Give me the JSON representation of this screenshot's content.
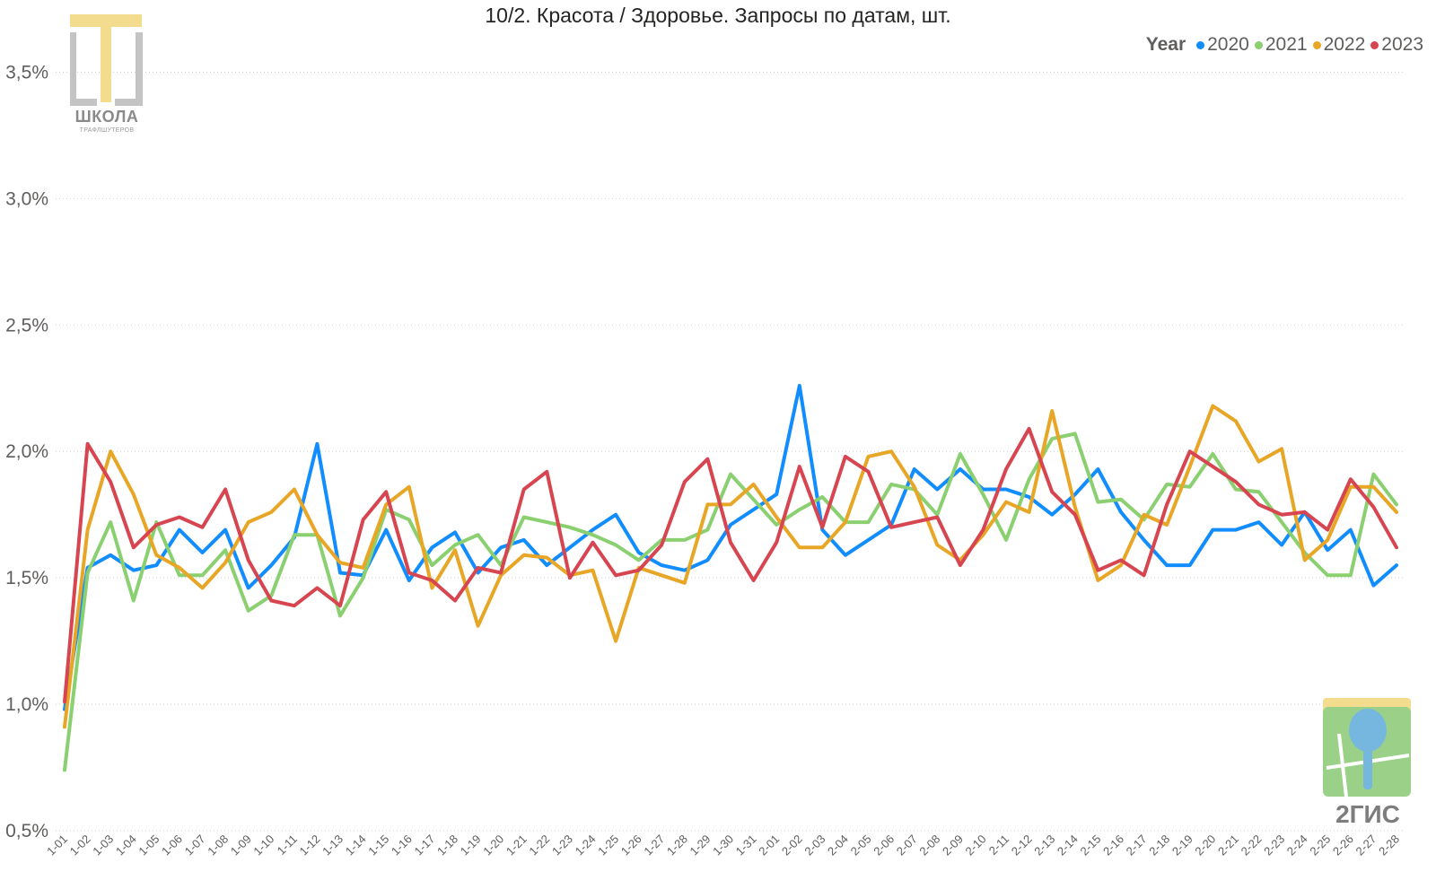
{
  "chart_data": {
    "type": "line",
    "title": "10/2. Красота / Здоровье. Запросы по датам, шт.",
    "legend_title": "Year",
    "legend_position": "top-right",
    "grid": true,
    "ylim": [
      0.5,
      3.75
    ],
    "yticks": [
      0.5,
      1.0,
      1.5,
      2.0,
      2.5,
      3.0,
      3.5
    ],
    "ytick_labels": [
      "0,5%",
      "1,0%",
      "1,5%",
      "2,0%",
      "2,5%",
      "3,0%",
      "3,5%"
    ],
    "x": [
      "1-01",
      "1-02",
      "1-03",
      "1-04",
      "1-05",
      "1-06",
      "1-07",
      "1-08",
      "1-09",
      "1-10",
      "1-11",
      "1-12",
      "1-13",
      "1-14",
      "1-15",
      "1-16",
      "1-17",
      "1-18",
      "1-19",
      "1-20",
      "1-21",
      "1-22",
      "1-23",
      "1-24",
      "1-25",
      "1-26",
      "1-27",
      "1-28",
      "1-29",
      "1-30",
      "1-31",
      "2-01",
      "2-02",
      "2-03",
      "2-04",
      "2-05",
      "2-06",
      "2-07",
      "2-08",
      "2-09",
      "2-10",
      "2-11",
      "2-12",
      "2-13",
      "2-14",
      "2-15",
      "2-16",
      "2-17",
      "2-18",
      "2-19",
      "2-20",
      "2-21",
      "2-22",
      "2-23",
      "2-24",
      "2-25",
      "2-26",
      "2-27",
      "2-28"
    ],
    "series": [
      {
        "name": "2020",
        "color": "#118DFF",
        "values": [
          0.98,
          1.54,
          1.59,
          1.53,
          1.55,
          1.69,
          1.6,
          1.69,
          1.46,
          1.55,
          1.66,
          2.03,
          1.52,
          1.51,
          1.69,
          1.49,
          1.62,
          1.68,
          1.52,
          1.62,
          1.65,
          1.55,
          1.62,
          1.69,
          1.75,
          1.6,
          1.55,
          1.53,
          1.57,
          1.71,
          1.77,
          1.83,
          2.26,
          1.69,
          1.59,
          1.65,
          1.71,
          1.93,
          1.85,
          1.93,
          1.85,
          1.85,
          1.82,
          1.75,
          1.83,
          1.93,
          1.76,
          1.65,
          1.55,
          1.55,
          1.69,
          1.69,
          1.72,
          1.63,
          1.76,
          1.61,
          1.69,
          1.47,
          1.55
        ]
      },
      {
        "name": "2021",
        "color": "#8AD070",
        "values": [
          0.74,
          1.52,
          1.72,
          1.41,
          1.72,
          1.51,
          1.51,
          1.61,
          1.37,
          1.43,
          1.67,
          1.67,
          1.35,
          1.5,
          1.77,
          1.73,
          1.55,
          1.63,
          1.67,
          1.55,
          1.74,
          1.72,
          1.7,
          1.67,
          1.63,
          1.57,
          1.65,
          1.65,
          1.69,
          1.91,
          1.81,
          1.71,
          1.77,
          1.82,
          1.72,
          1.72,
          1.87,
          1.85,
          1.75,
          1.99,
          1.83,
          1.65,
          1.89,
          2.05,
          2.07,
          1.8,
          1.81,
          1.73,
          1.87,
          1.86,
          1.99,
          1.85,
          1.84,
          1.72,
          1.6,
          1.51,
          1.51,
          1.91,
          1.79
        ]
      },
      {
        "name": "2022",
        "color": "#E8A626",
        "values": [
          0.91,
          1.69,
          2.0,
          1.83,
          1.59,
          1.54,
          1.46,
          1.56,
          1.72,
          1.76,
          1.85,
          1.67,
          1.56,
          1.54,
          1.79,
          1.86,
          1.46,
          1.61,
          1.31,
          1.51,
          1.59,
          1.58,
          1.51,
          1.53,
          1.25,
          1.54,
          1.51,
          1.48,
          1.79,
          1.79,
          1.87,
          1.74,
          1.62,
          1.62,
          1.72,
          1.98,
          2.0,
          1.86,
          1.63,
          1.57,
          1.67,
          1.8,
          1.76,
          2.16,
          1.78,
          1.49,
          1.55,
          1.75,
          1.71,
          1.94,
          2.18,
          2.12,
          1.96,
          2.01,
          1.57,
          1.65,
          1.86,
          1.86,
          1.76
        ]
      },
      {
        "name": "2023",
        "color": "#D64550",
        "values": [
          1.01,
          2.03,
          1.88,
          1.62,
          1.71,
          1.74,
          1.7,
          1.85,
          1.57,
          1.41,
          1.39,
          1.46,
          1.39,
          1.73,
          1.84,
          1.52,
          1.49,
          1.41,
          1.54,
          1.52,
          1.85,
          1.92,
          1.5,
          1.64,
          1.51,
          1.53,
          1.63,
          1.88,
          1.97,
          1.64,
          1.49,
          1.64,
          1.94,
          1.7,
          1.98,
          1.92,
          1.7,
          1.72,
          1.74,
          1.55,
          1.69,
          1.93,
          2.09,
          1.84,
          1.75,
          1.53,
          1.57,
          1.51,
          1.79,
          2.0,
          1.94,
          1.88,
          1.79,
          1.75,
          1.76,
          1.69,
          1.89,
          1.78,
          1.62
        ]
      }
    ]
  },
  "logos": {
    "school_name": "ШКОЛА",
    "school_sub": "ТРАФЛШУТЕРОВ",
    "gis_name": "2ГИС"
  }
}
